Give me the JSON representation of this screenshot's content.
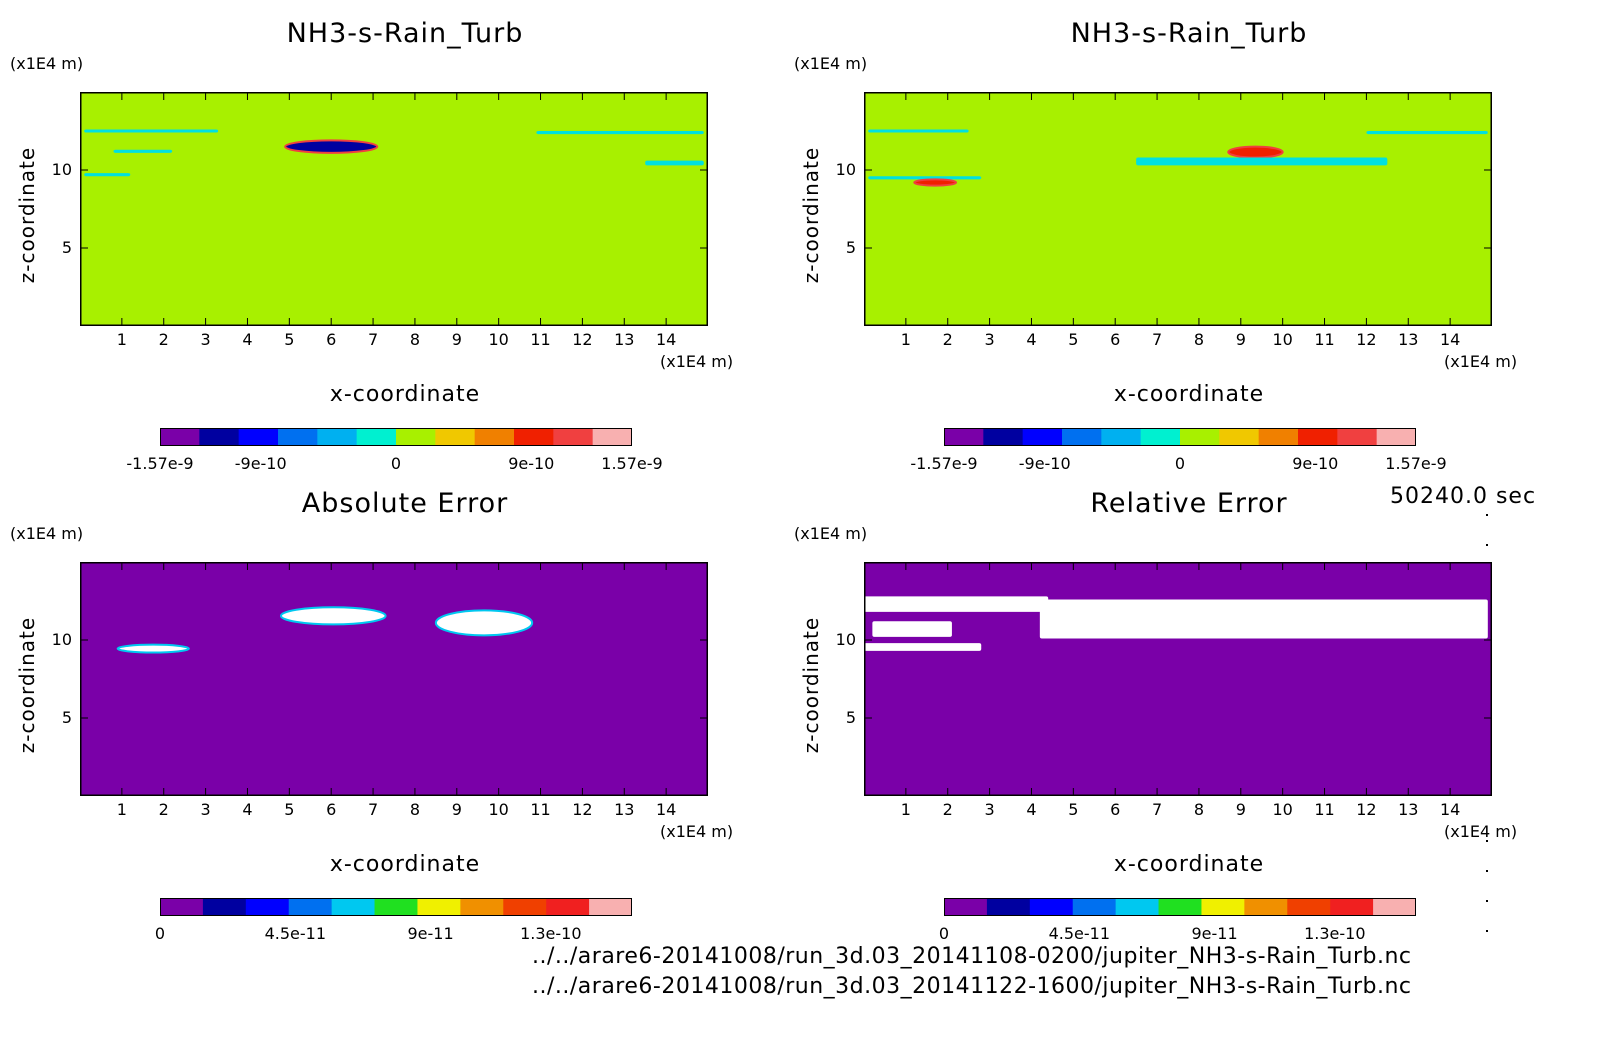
{
  "time_label": "50240.0 sec",
  "file_paths": [
    "../../arare6-20141008/run_3d.03_20141108-0200/jupiter_NH3-s-Rain_Turb.nc",
    "../../arare6-20141008/run_3d.03_20141122-1600/jupiter_NH3-s-Rain_Turb.nc"
  ],
  "colors": {
    "green_field": "#a8f000",
    "purple_field": "#7a00a8",
    "value_colorbar": [
      "#7a00a8",
      "#0000a0",
      "#0000ff",
      "#0070f0",
      "#00b0f0",
      "#00f0d0",
      "#a8f000",
      "#f0c800",
      "#f08000",
      "#f02000",
      "#f04040",
      "#f8b0b0"
    ],
    "error_colorbar": [
      "#7a00a8",
      "#0000a0",
      "#0000ff",
      "#0070f0",
      "#00c8f0",
      "#20e020",
      "#f0f000",
      "#f09000",
      "#f04000",
      "#f02020",
      "#f8b0b0"
    ]
  },
  "chart_data": [
    {
      "type": "heatmap",
      "title": "NH3-s-Rain_Turb",
      "xlabel": "x-coordinate",
      "ylabel": "z-coordinate",
      "x_unit": "(x1E4 m)",
      "y_unit": "(x1E4 m)",
      "xlim": [
        0,
        15
      ],
      "ylim": [
        0,
        15
      ],
      "xticks": [
        1,
        2,
        3,
        4,
        5,
        6,
        7,
        8,
        9,
        10,
        11,
        12,
        13,
        14
      ],
      "yticks": [
        5,
        10
      ],
      "background_value": 0,
      "colorbar_ticks": [
        {
          "label": "-1.57e-9",
          "value": -1.57e-09
        },
        {
          "label": "-9e-10",
          "value": -9e-10
        },
        {
          "label": "0",
          "value": 0
        },
        {
          "label": "9e-10",
          "value": 9e-10
        },
        {
          "label": "1.57e-9",
          "value": 1.57e-09
        }
      ],
      "features": [
        {
          "kind": "band",
          "x": [
            0.1,
            3.3
          ],
          "z": [
            12.4,
            12.6
          ],
          "color": "#00e0e0"
        },
        {
          "kind": "band",
          "x": [
            0.8,
            2.2
          ],
          "z": [
            11.1,
            11.3
          ],
          "color": "#00e0e0"
        },
        {
          "kind": "band",
          "x": [
            0.1,
            1.2
          ],
          "z": [
            9.6,
            9.8
          ],
          "color": "#00e0e0"
        },
        {
          "kind": "blob",
          "x": [
            4.9,
            7.1
          ],
          "z": [
            11.1,
            11.9
          ],
          "color": "#0000a0"
        },
        {
          "kind": "band",
          "x": [
            10.9,
            14.9
          ],
          "z": [
            12.3,
            12.5
          ],
          "color": "#00e0e0"
        },
        {
          "kind": "band",
          "x": [
            13.5,
            14.9
          ],
          "z": [
            10.3,
            10.6
          ],
          "color": "#00e0e0"
        }
      ]
    },
    {
      "type": "heatmap",
      "title": "NH3-s-Rain_Turb",
      "xlabel": "x-coordinate",
      "ylabel": "z-coordinate",
      "x_unit": "(x1E4 m)",
      "y_unit": "(x1E4 m)",
      "xlim": [
        0,
        15
      ],
      "ylim": [
        0,
        15
      ],
      "xticks": [
        1,
        2,
        3,
        4,
        5,
        6,
        7,
        8,
        9,
        10,
        11,
        12,
        13,
        14
      ],
      "yticks": [
        5,
        10
      ],
      "background_value": 0,
      "colorbar_ticks": [
        {
          "label": "-1.57e-9",
          "value": -1.57e-09
        },
        {
          "label": "-9e-10",
          "value": -9e-10
        },
        {
          "label": "0",
          "value": 0
        },
        {
          "label": "9e-10",
          "value": 9e-10
        },
        {
          "label": "1.57e-9",
          "value": 1.57e-09
        }
      ],
      "features": [
        {
          "kind": "band",
          "x": [
            0.1,
            2.5
          ],
          "z": [
            12.4,
            12.6
          ],
          "color": "#00e0e0"
        },
        {
          "kind": "band",
          "x": [
            0.1,
            2.8
          ],
          "z": [
            9.4,
            9.6
          ],
          "color": "#00e0e0"
        },
        {
          "kind": "blob",
          "x": [
            1.2,
            2.2
          ],
          "z": [
            9.0,
            9.4
          ],
          "color": "#f02000"
        },
        {
          "kind": "blob",
          "x": [
            8.7,
            10.0
          ],
          "z": [
            10.8,
            11.5
          ],
          "color": "#f02000"
        },
        {
          "kind": "band",
          "x": [
            12.0,
            14.9
          ],
          "z": [
            12.3,
            12.5
          ],
          "color": "#00e0e0"
        },
        {
          "kind": "band",
          "x": [
            6.5,
            12.5
          ],
          "z": [
            10.3,
            10.8
          ],
          "color": "#00e0e0"
        }
      ]
    },
    {
      "type": "heatmap",
      "title": "Absolute Error",
      "xlabel": "x-coordinate",
      "ylabel": "z-coordinate",
      "x_unit": "(x1E4 m)",
      "y_unit": "(x1E4 m)",
      "xlim": [
        0,
        15
      ],
      "ylim": [
        0,
        15
      ],
      "xticks": [
        1,
        2,
        3,
        4,
        5,
        6,
        7,
        8,
        9,
        10,
        11,
        12,
        13,
        14
      ],
      "yticks": [
        5,
        10
      ],
      "background_value": 0,
      "colorbar_ticks": [
        {
          "label": "0",
          "value": 0
        },
        {
          "label": "4.5e-11",
          "value": 4.5e-11
        },
        {
          "label": "9e-11",
          "value": 9e-11
        },
        {
          "label": "1.3e-10",
          "value": 1.3e-10
        }
      ],
      "features": [
        {
          "kind": "blob",
          "x": [
            0.9,
            2.6
          ],
          "z": [
            9.2,
            9.7
          ],
          "color": "#ffffff"
        },
        {
          "kind": "blob",
          "x": [
            4.8,
            7.3
          ],
          "z": [
            11.0,
            12.1
          ],
          "color": "#ffffff"
        },
        {
          "kind": "blob",
          "x": [
            8.5,
            10.8
          ],
          "z": [
            10.3,
            11.9
          ],
          "color": "#ffffff"
        }
      ]
    },
    {
      "type": "heatmap",
      "title": "Relative Error",
      "xlabel": "x-coordinate",
      "ylabel": "z-coordinate",
      "x_unit": "(x1E4 m)",
      "y_unit": "(x1E4 m)",
      "xlim": [
        0,
        15
      ],
      "ylim": [
        0,
        15
      ],
      "xticks": [
        1,
        2,
        3,
        4,
        5,
        6,
        7,
        8,
        9,
        10,
        11,
        12,
        13,
        14
      ],
      "yticks": [
        5,
        10
      ],
      "background_value": 0,
      "colorbar_ticks": [
        {
          "label": "0",
          "value": 0
        },
        {
          "label": "4.5e-11",
          "value": 4.5e-11
        },
        {
          "label": "9e-11",
          "value": 9e-11
        },
        {
          "label": "1.3e-10",
          "value": 1.3e-10
        }
      ],
      "features": [
        {
          "kind": "band",
          "x": [
            0.0,
            4.4
          ],
          "z": [
            11.8,
            12.8
          ],
          "color": "#ffffff"
        },
        {
          "kind": "band",
          "x": [
            0.2,
            2.1
          ],
          "z": [
            10.2,
            11.2
          ],
          "color": "#ffffff"
        },
        {
          "kind": "band",
          "x": [
            0.0,
            2.8
          ],
          "z": [
            9.3,
            9.8
          ],
          "color": "#ffffff"
        },
        {
          "kind": "band",
          "x": [
            4.2,
            14.9
          ],
          "z": [
            10.1,
            12.6
          ],
          "color": "#ffffff"
        }
      ]
    }
  ]
}
